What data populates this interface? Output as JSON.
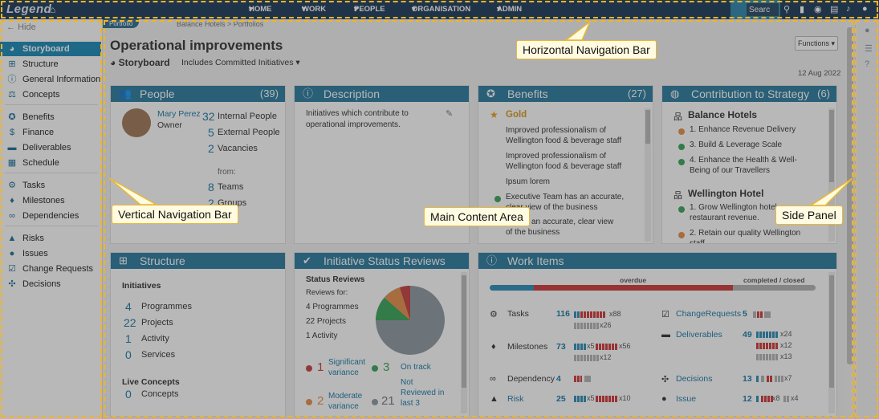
{
  "topbar": {
    "logo": "Legend",
    "menus": [
      "HOME",
      "WORK",
      "PEOPLE",
      "ORGANISATION",
      "ADMIN"
    ],
    "search_placeholder": "Searc"
  },
  "leftnav": {
    "hide_label": "Hide",
    "items": [
      {
        "label": "Storyboard",
        "icon": "dashboard-icon"
      },
      {
        "label": "Structure",
        "icon": "structure-icon"
      },
      {
        "label": "General Information",
        "icon": "info-icon"
      },
      {
        "label": "Concepts",
        "icon": "scale-icon"
      },
      {
        "label": "Benefits",
        "icon": "ribbon-icon"
      },
      {
        "label": "Finance",
        "icon": "dollar-icon"
      },
      {
        "label": "Deliverables",
        "icon": "truck-icon"
      },
      {
        "label": "Schedule",
        "icon": "calendar-icon"
      },
      {
        "label": "Tasks",
        "icon": "tasks-icon"
      },
      {
        "label": "Milestones",
        "icon": "diamond-icon"
      },
      {
        "label": "Dependencies",
        "icon": "link-icon"
      },
      {
        "label": "Risks",
        "icon": "warning-icon"
      },
      {
        "label": "Issues",
        "icon": "exclamation-icon"
      },
      {
        "label": "Change Requests",
        "icon": "change-icon"
      },
      {
        "label": "Decisions",
        "icon": "decision-icon"
      }
    ]
  },
  "breadcrumb": {
    "pill": "Portfolio",
    "path": "Balance Hotels > Portfolios"
  },
  "page": {
    "title": "Operational improvements",
    "storyboard": "Storyboard",
    "filter": "Includes Committed Initiatives",
    "functions": "Functions",
    "date": "12 Aug 2022"
  },
  "people": {
    "title": "People",
    "count": "(39)",
    "name": "Mary Perez",
    "role": "Owner",
    "internal_n": "32",
    "internal": "Internal People",
    "external_n": "5",
    "external": "External People",
    "vacancies_n": "2",
    "vacancies": "Vacancies",
    "from": "from:",
    "teams_n": "8",
    "teams": "Teams",
    "groups_n": "2",
    "groups": "Groups"
  },
  "description": {
    "title": "Description",
    "text1": "Initiatives which contribute to",
    "text2": "operational improvements."
  },
  "benefits": {
    "title": "Benefits",
    "count": "(27)",
    "tier": "Gold",
    "items": [
      "Improved professionalism of",
      "Wellington food & beverage staff",
      "Improved professionalism of",
      "Wellington food & beverage staff",
      "Ipsum lorem",
      "Executive Team has an accurate,",
      "clear view of the business",
      "an accurate, clear view",
      "of the business"
    ]
  },
  "strategy": {
    "title": "Contribution to Strategy",
    "count": "(6)",
    "org1": "Balance Hotels",
    "o1": [
      "1. Enhance Revenue Delivery",
      "3. Build & Leverage Scale",
      "4. Enhance the Health & Well-",
      "Being of our Travellers"
    ],
    "org2": "Wellington Hotel",
    "o2": [
      "1. Grow Wellington hotel",
      "restaurant revenue.",
      "2. Retain our quality Wellington",
      "staff"
    ]
  },
  "structure": {
    "title": "Structure",
    "initiatives": "Initiatives",
    "programmes_n": "4",
    "programmes": "Programmes",
    "projects_n": "22",
    "projects": "Projects",
    "activity_n": "1",
    "activity": "Activity",
    "services_n": "0",
    "services": "Services",
    "live": "Live Concepts",
    "concepts_n": "0",
    "concepts": "Concepts"
  },
  "reviews": {
    "title": "Initiative Status Reviews",
    "heading": "Status Reviews",
    "for": "Reviews for:",
    "l1": "4 Programmes",
    "l2": "22 Projects",
    "l3": "1 Activity",
    "sig_n": "1",
    "sig1": "Significant",
    "sig2": "variance",
    "ontrack_n": "3",
    "ontrack": "On track",
    "mod_n": "2",
    "mod1": "Moderate",
    "mod2": "variance",
    "nr_n": "21",
    "nr1": "Not",
    "nr2": "Reviewed in",
    "nr3": "last 3"
  },
  "workitems": {
    "title": "Work Items",
    "overdue": "overdue",
    "completed": "completed / closed",
    "tasks": "Tasks",
    "tasks_n": "116",
    "tasks_x1": "x88",
    "tasks_x2": "x26",
    "milestones": "Milestones",
    "milestones_n": "73",
    "ms_x1": "x5",
    "ms_x2": "x56",
    "ms_x3": "x12",
    "dependency": "Dependency",
    "dependency_n": "4",
    "risk": "Risk",
    "risk_n": "25",
    "risk_x1": "x5",
    "risk_x2": "x10",
    "cr": "ChangeRequests",
    "cr_n": "5",
    "deliverables": "Deliverables",
    "del_n": "49",
    "del_x1": "x24",
    "del_x2": "x12",
    "del_x3": "x13",
    "decisions": "Decisions",
    "dec_n": "13",
    "dec_x1": "x7",
    "issue": "Issue",
    "issue_n": "12",
    "iss_x1": "x8",
    "iss_x2": "x4"
  },
  "callouts": {
    "horizontal": "Horizontal Navigation Bar",
    "vertical": "Vertical Navigation Bar",
    "main": "Main Content Area",
    "side": "Side Panel"
  },
  "colors": {
    "navy": "#1d3b5a",
    "accent": "#2b7b9e",
    "callout_border": "#e8b838"
  }
}
